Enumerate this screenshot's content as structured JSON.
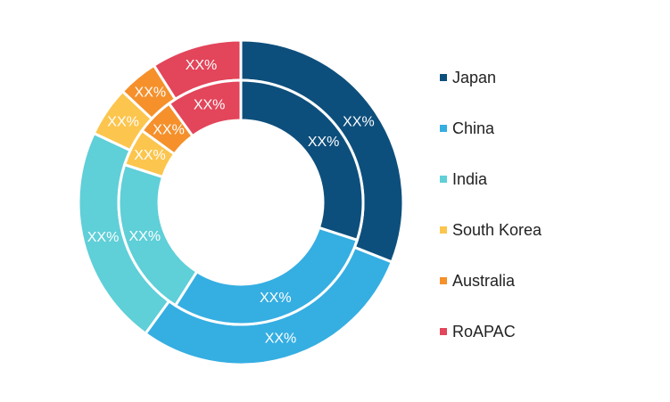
{
  "chart_data": {
    "type": "pie",
    "variant": "nested-donut",
    "categories": [
      "Japan",
      "China",
      "India",
      "South Korea",
      "Australia",
      "RoAPAC"
    ],
    "colors": [
      "#0d4f7c",
      "#35aee2",
      "#5fcfd8",
      "#fcc54d",
      "#f5902b",
      "#e3455a"
    ],
    "series": [
      {
        "values": [
          31,
          29,
          22,
          5,
          4,
          9
        ],
        "labels": [
          "XX%",
          "XX%",
          "XX%",
          "XX%",
          "XX%",
          "XX%"
        ]
      },
      {
        "values": [
          30,
          29,
          21,
          5,
          5,
          10
        ],
        "labels": [
          "XX%",
          "XX%",
          "XX%",
          "XX%",
          "XX%",
          "XX%"
        ]
      }
    ],
    "legend": {
      "position": "right"
    }
  }
}
